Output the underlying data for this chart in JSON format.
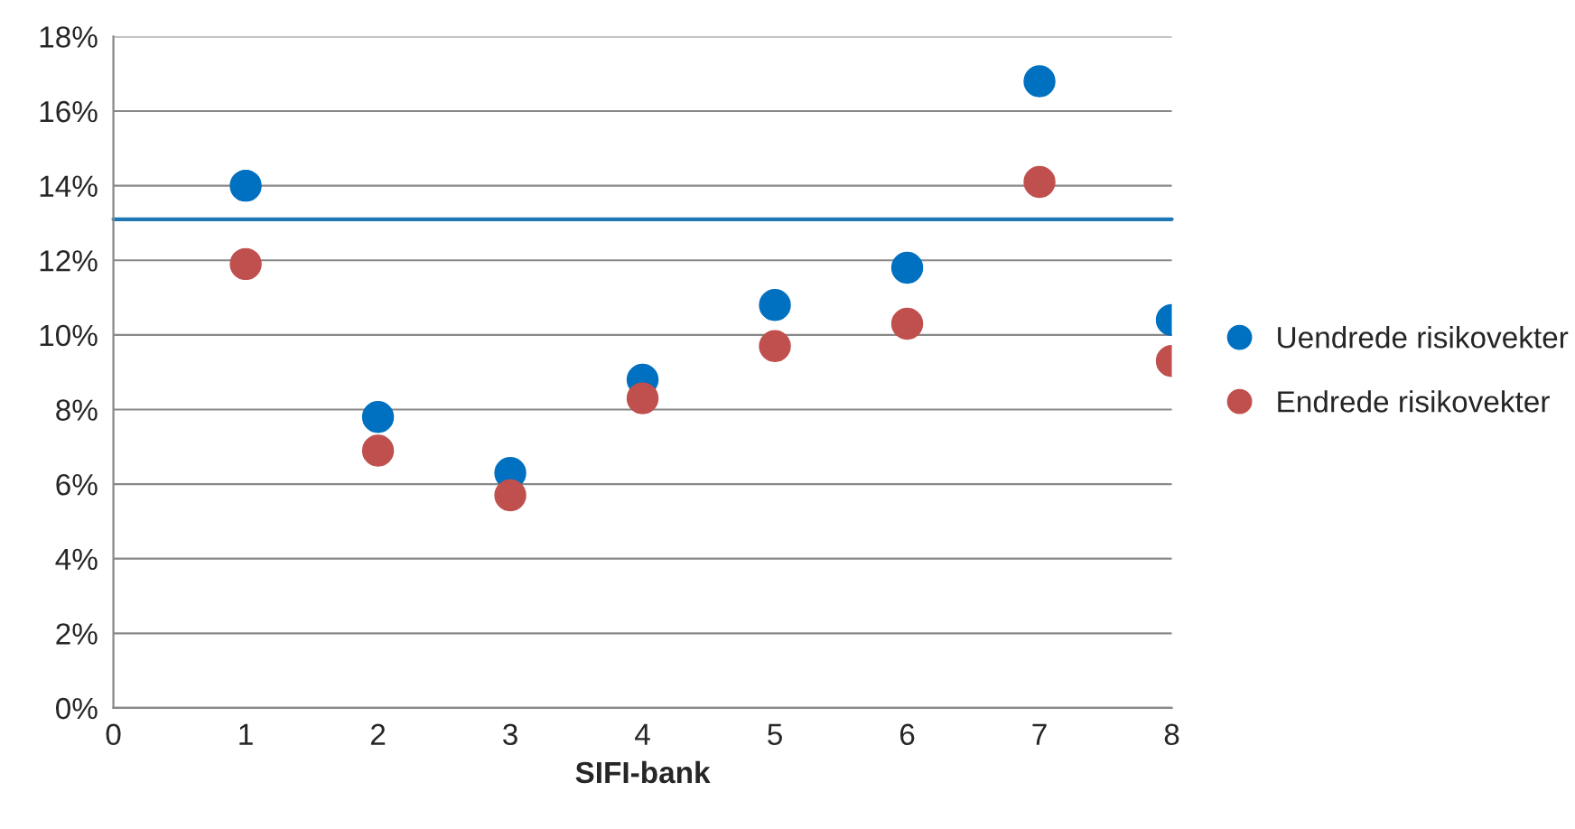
{
  "chart_data": {
    "type": "scatter",
    "xlabel": "SIFI-bank",
    "x": [
      1,
      2,
      3,
      4,
      5,
      6,
      7,
      8
    ],
    "series": [
      {
        "name": "Uendrede risikovekter",
        "color": "#0070c0",
        "values": [
          14.0,
          7.8,
          6.3,
          8.8,
          10.8,
          11.8,
          16.8,
          10.4
        ]
      },
      {
        "name": "Endrede risikovekter",
        "color": "#c0504d",
        "values": [
          11.9,
          6.9,
          5.7,
          8.3,
          9.7,
          10.3,
          14.1,
          9.3
        ]
      }
    ],
    "xlim": [
      0,
      8
    ],
    "xticks": [
      0,
      1,
      2,
      3,
      4,
      5,
      6,
      7,
      8
    ],
    "ylim": [
      0,
      18
    ],
    "yticks": [
      {
        "value": 0,
        "label": "0%"
      },
      {
        "value": 2,
        "label": "2%"
      },
      {
        "value": 4,
        "label": "4%"
      },
      {
        "value": 6,
        "label": "6%"
      },
      {
        "value": 8,
        "label": "8%"
      },
      {
        "value": 10,
        "label": "10%"
      },
      {
        "value": 12,
        "label": "12%"
      },
      {
        "value": 14,
        "label": "14%"
      },
      {
        "value": 16,
        "label": "16%"
      },
      {
        "value": 18,
        "label": "18%"
      }
    ],
    "ref_lines": [
      {
        "axis": "y",
        "value": 13.1,
        "label": null,
        "color": "#1f77b4"
      }
    ],
    "grid": "y",
    "legend": "right",
    "marker": "circle"
  }
}
